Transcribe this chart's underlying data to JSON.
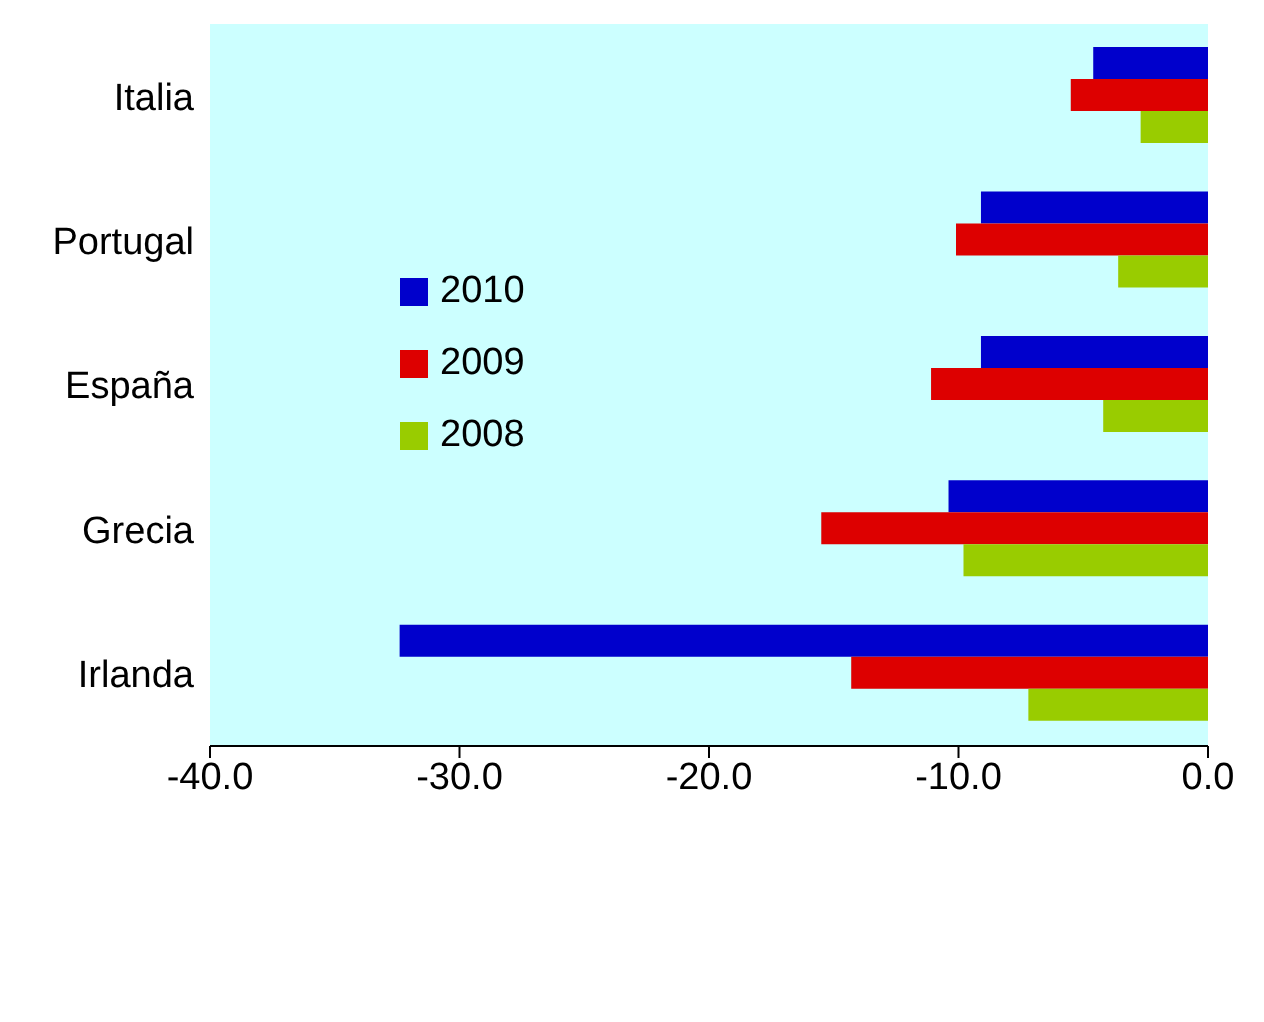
{
  "chart_data": {
    "type": "bar",
    "orientation": "horizontal",
    "categories": [
      "Italia",
      "Portugal",
      "España",
      "Grecia",
      "Irlanda"
    ],
    "series": [
      {
        "name": "2010",
        "color": "#0000cc",
        "values": [
          -4.6,
          -9.1,
          -9.1,
          -10.4,
          -32.4
        ]
      },
      {
        "name": "2009",
        "color": "#dd0000",
        "values": [
          -5.5,
          -10.1,
          -11.1,
          -15.5,
          -14.3
        ]
      },
      {
        "name": "2008",
        "color": "#99cc00",
        "values": [
          -2.7,
          -3.6,
          -4.2,
          -9.8,
          -7.2
        ]
      }
    ],
    "xlim": [
      -40,
      0
    ],
    "xticks": [
      {
        "value": -40,
        "label": "-40.0"
      },
      {
        "value": -30,
        "label": "-30.0"
      },
      {
        "value": -20,
        "label": "-20.0"
      },
      {
        "value": -10,
        "label": "-10.0"
      },
      {
        "value": 0,
        "label": "0.0"
      }
    ],
    "legend": "left"
  }
}
